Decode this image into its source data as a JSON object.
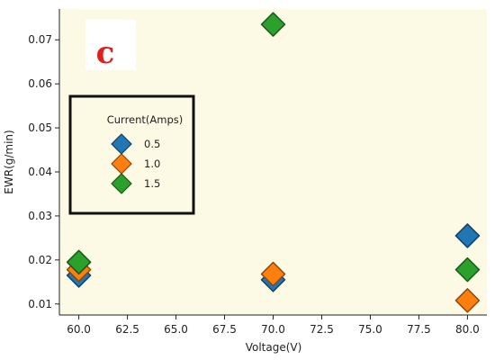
{
  "panel_label": "c",
  "chart_data": {
    "type": "scatter",
    "title": "",
    "xlabel": "Voltage(V)",
    "ylabel": "EWR(g/min)",
    "xlim": [
      59.0,
      81.0
    ],
    "ylim": [
      0.0075,
      0.077
    ],
    "x_ticks": [
      60.0,
      62.5,
      65.0,
      67.5,
      70.0,
      72.5,
      75.0,
      77.5,
      80.0
    ],
    "x_tick_labels": [
      "60.0",
      "62.5",
      "65.0",
      "67.5",
      "70.0",
      "72.5",
      "75.0",
      "77.5",
      "80.0"
    ],
    "y_ticks": [
      0.01,
      0.02,
      0.03,
      0.04,
      0.05,
      0.06,
      0.07
    ],
    "y_tick_labels": [
      "0.01",
      "0.02",
      "0.03",
      "0.04",
      "0.05",
      "0.06",
      "0.07"
    ],
    "grid": false,
    "marker": "diamond",
    "background": "#fcf9e4",
    "legend": {
      "title": "Current(Amps)",
      "placement": "center-left"
    },
    "series": [
      {
        "name": "0.5",
        "color": "#1f77b4",
        "x": [
          60.0,
          70.0,
          80.0
        ],
        "y": [
          0.0165,
          0.0155,
          0.0255
        ]
      },
      {
        "name": "1.0",
        "color": "#ff7f0e",
        "x": [
          60.0,
          70.0,
          80.0
        ],
        "y": [
          0.0178,
          0.0168,
          0.0108
        ]
      },
      {
        "name": "1.5",
        "color": "#2ca02c",
        "x": [
          60.0,
          70.0,
          80.0
        ],
        "y": [
          0.0195,
          0.0735,
          0.0178
        ]
      }
    ]
  }
}
